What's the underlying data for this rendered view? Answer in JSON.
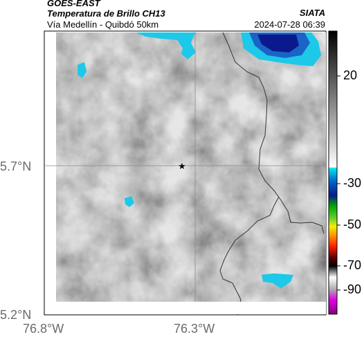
{
  "header": {
    "satellite": "GOES-EAST",
    "product": "Temperatura de Brillo CH13",
    "location": "Vía Medellín - Quibdó 50km",
    "agency": "SIATA",
    "timestamp": "2024-07-28 06:39"
  },
  "axes": {
    "y_ticks": [
      "5.7°N",
      "5.2°N"
    ],
    "x_ticks": [
      "76.8°W",
      "76.3°W"
    ]
  },
  "colorbar": {
    "labels": [
      "20",
      "-30",
      "-50",
      "-70",
      "-90"
    ],
    "colors": [
      "#000000",
      "#8f8f8f",
      "#ffffff",
      "#00e5ee",
      "#0a1a8c",
      "#00aa00",
      "#f0f000",
      "#ff2000",
      "#e000e0"
    ]
  },
  "map": {
    "marker_icon": "star-icon"
  }
}
